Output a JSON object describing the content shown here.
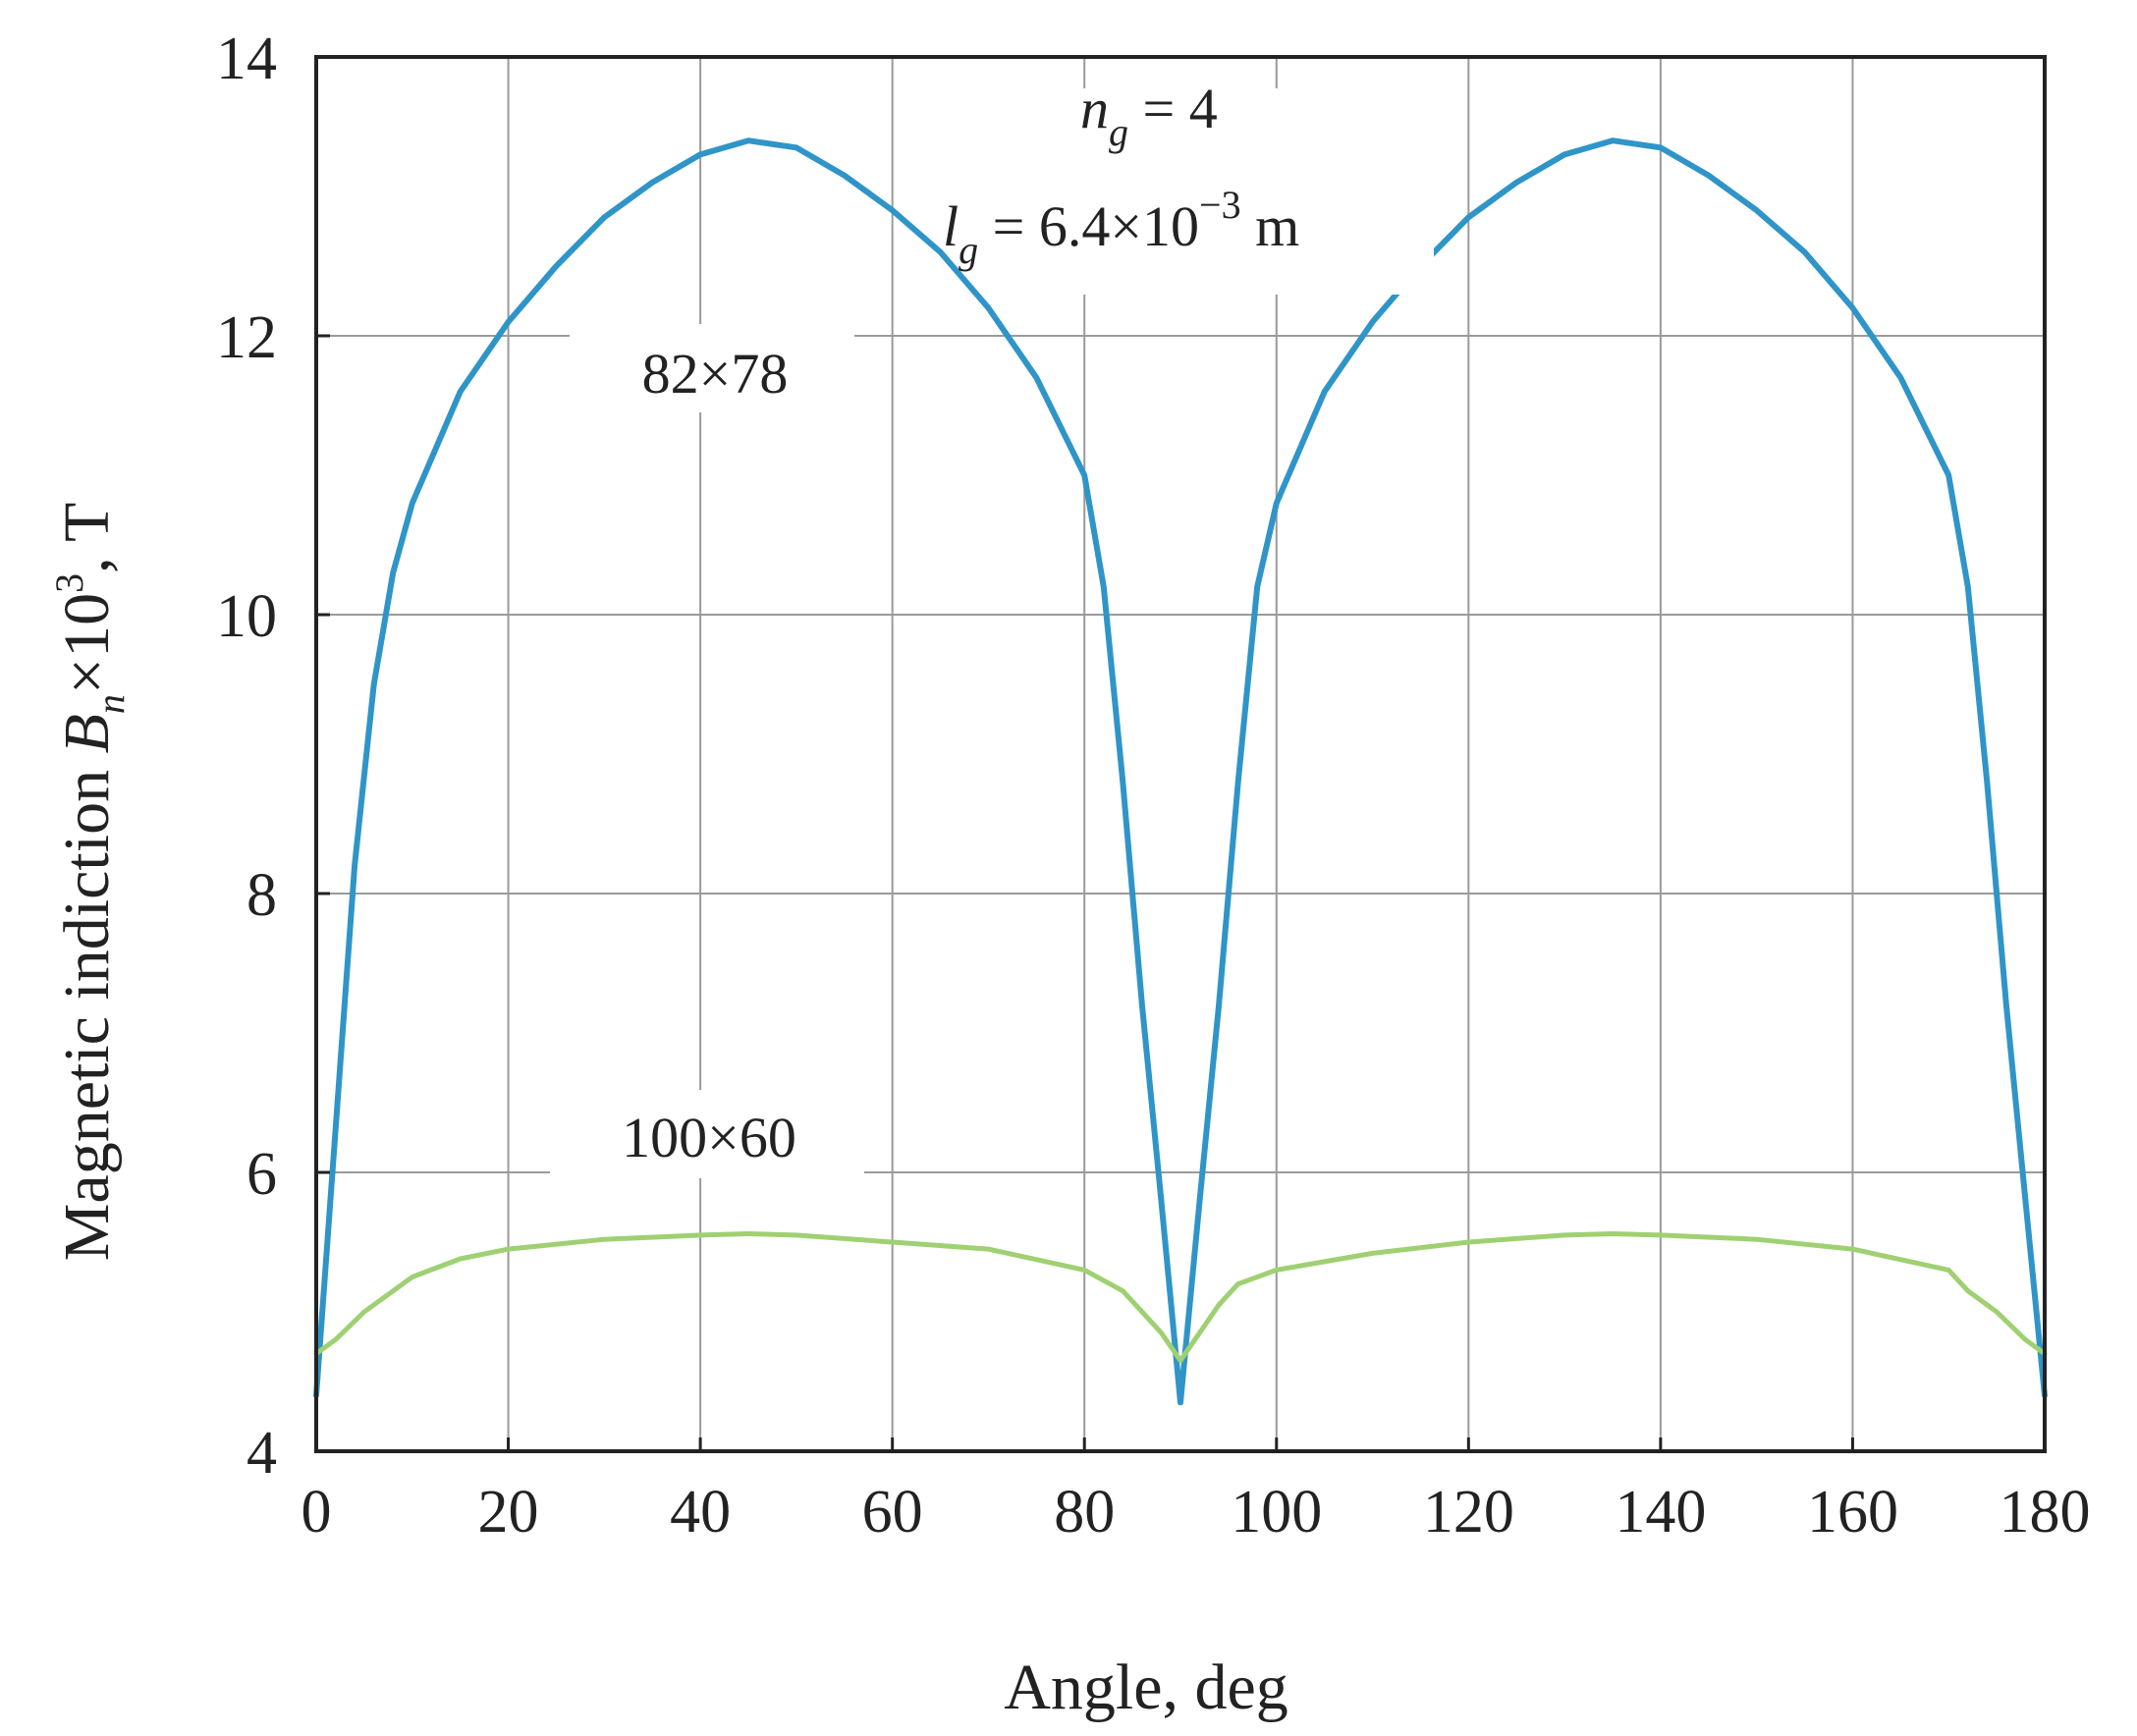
{
  "chart_data": {
    "type": "line",
    "xlabel": "Angle, deg",
    "ylabel": {
      "prefix": "Magnetic indiction ",
      "symbol": "B",
      "symbol_sub": "n",
      "multiplier": "×10",
      "multiplier_exp": "3",
      "unit": ", T"
    },
    "xlim": [
      0,
      180
    ],
    "ylim": [
      4,
      14
    ],
    "xticks": [
      0,
      20,
      40,
      60,
      80,
      100,
      120,
      140,
      160,
      180
    ],
    "yticks": [
      4,
      6,
      8,
      10,
      12,
      14
    ],
    "xtick_labels": [
      "0",
      "20",
      "40",
      "60",
      "80",
      "100",
      "120",
      "140",
      "160",
      "180"
    ],
    "ytick_labels": [
      "4",
      "6",
      "8",
      "10",
      "12",
      "14"
    ],
    "grid": true,
    "annotation": {
      "ng_symbol": "n",
      "ng_sub": "g",
      "ng_value": " = 4",
      "lg_symbol": "l",
      "lg_sub": "g",
      "lg_value": " = 6.4×10",
      "lg_exp": "−3",
      "lg_unit": " m"
    },
    "series": [
      {
        "name": "82×78",
        "color": "#2f95c8",
        "x": [
          0,
          2,
          4,
          6,
          8,
          10,
          15,
          20,
          25,
          30,
          35,
          40,
          45,
          50,
          55,
          60,
          65,
          70,
          75,
          80,
          82,
          84,
          86,
          88,
          90,
          92,
          94,
          96,
          98,
          100,
          105,
          110,
          115,
          120,
          125,
          130,
          135,
          140,
          145,
          150,
          155,
          160,
          165,
          170,
          172,
          174,
          176,
          178,
          180
        ],
        "y": [
          4.4,
          6.3,
          8.2,
          9.5,
          10.3,
          10.8,
          11.6,
          12.1,
          12.5,
          12.85,
          13.1,
          13.3,
          13.4,
          13.35,
          13.15,
          12.9,
          12.6,
          12.2,
          11.7,
          11.0,
          10.2,
          8.8,
          7.2,
          5.8,
          4.35,
          5.8,
          7.2,
          8.8,
          10.2,
          10.8,
          11.6,
          12.1,
          12.5,
          12.85,
          13.1,
          13.3,
          13.4,
          13.35,
          13.15,
          12.9,
          12.6,
          12.2,
          11.7,
          11.0,
          10.2,
          8.8,
          7.2,
          5.8,
          4.4
        ]
      },
      {
        "name": "100×60",
        "color": "#9fd072",
        "x": [
          0,
          2,
          5,
          10,
          15,
          20,
          30,
          40,
          45,
          50,
          60,
          70,
          80,
          84,
          86,
          88,
          90,
          92,
          94,
          96,
          100,
          110,
          120,
          130,
          135,
          140,
          150,
          160,
          170,
          172,
          175,
          178,
          180
        ],
        "y": [
          4.7,
          4.8,
          5.0,
          5.25,
          5.38,
          5.45,
          5.52,
          5.55,
          5.56,
          5.55,
          5.5,
          5.45,
          5.3,
          5.15,
          5.0,
          4.85,
          4.65,
          4.85,
          5.05,
          5.2,
          5.3,
          5.42,
          5.5,
          5.55,
          5.56,
          5.55,
          5.52,
          5.45,
          5.3,
          5.15,
          5.0,
          4.8,
          4.7
        ]
      }
    ]
  }
}
